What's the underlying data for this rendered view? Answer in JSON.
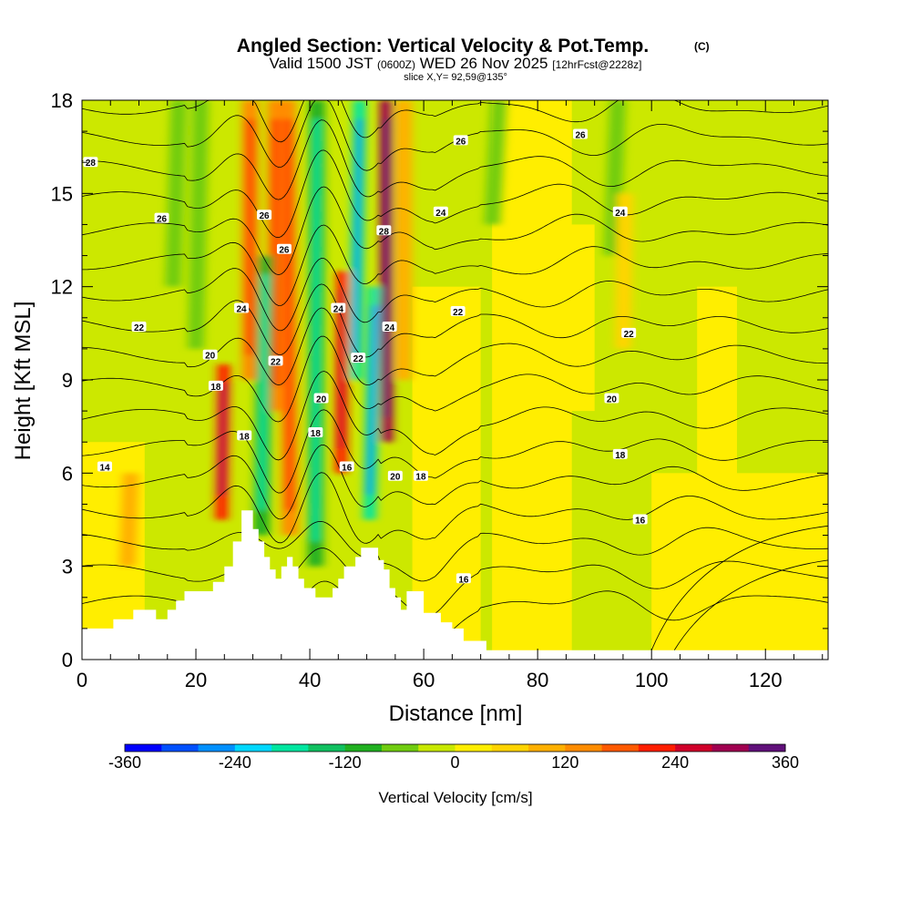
{
  "chart_data": {
    "type": "heatmap",
    "title": "Angled Section: Vertical Velocity & Pot.Temp.",
    "title_mark": "(C)",
    "subtitle_parts": [
      "Valid 1500 JST ",
      "(0600Z)",
      " WED 26 Nov 2025 ",
      "[12hrFcst@2228z]"
    ],
    "slice_label": "slice X,Y= 92,59@135°",
    "xlabel": "Distance [nm]",
    "ylabel": "Height [Kft MSL]",
    "xlim": [
      0,
      131
    ],
    "ylim": [
      0,
      18
    ],
    "x_ticks": [
      0,
      20,
      40,
      60,
      80,
      100,
      120
    ],
    "y_ticks": [
      0,
      3,
      6,
      9,
      12,
      15,
      18
    ],
    "colorbar": {
      "label": "Vertical Velocity [cm/s]",
      "ticks": [
        -360,
        -240,
        -120,
        0,
        120,
        240,
        360
      ],
      "range": [
        -360,
        360
      ],
      "colors": [
        "#0000ff",
        "#0050ff",
        "#0090ff",
        "#00d8ff",
        "#00e6a0",
        "#10c060",
        "#20b020",
        "#70cc10",
        "#c8e800",
        "#ffee00",
        "#ffd400",
        "#ffb000",
        "#ff8c00",
        "#ff5a00",
        "#ff1e00",
        "#d0002a",
        "#a00050",
        "#60107a"
      ]
    },
    "velocity_streaks": [
      {
        "x": 24.5,
        "top": 9.5,
        "bottom": 4.5,
        "value": 220
      },
      {
        "x": 29.5,
        "top": 18,
        "bottom": 9,
        "value": 150
      },
      {
        "x": 34,
        "top": 18,
        "bottom": 8,
        "value": 150
      },
      {
        "x": 31.5,
        "top": 13,
        "bottom": 4,
        "value": -120
      },
      {
        "x": 36.5,
        "top": 18,
        "bottom": 4,
        "value": 150
      },
      {
        "x": 41,
        "top": 18,
        "bottom": 3,
        "value": -120
      },
      {
        "x": 45.5,
        "top": 12.5,
        "bottom": 6,
        "value": 200
      },
      {
        "x": 48,
        "top": 18,
        "bottom": 9,
        "value": -200
      },
      {
        "x": 53.5,
        "top": 18,
        "bottom": 7,
        "value": 290
      },
      {
        "x": 50.5,
        "top": 12,
        "bottom": 4.5,
        "value": -200
      },
      {
        "x": 56.5,
        "top": 18,
        "bottom": 9,
        "value": 80
      },
      {
        "x": 16,
        "top": 18,
        "bottom": 12,
        "value": -60
      },
      {
        "x": 20,
        "top": 18,
        "bottom": 10,
        "value": -60
      },
      {
        "x": 72,
        "top": 18,
        "bottom": 14,
        "value": -60
      },
      {
        "x": 93,
        "top": 18,
        "bottom": 13,
        "value": -60
      },
      {
        "x": 95,
        "top": 15,
        "bottom": 10,
        "value": 40
      },
      {
        "x": 8,
        "top": 6,
        "bottom": 3,
        "value": 90
      }
    ],
    "theta_contours": [
      {
        "value": 14,
        "base_height": 6.2
      },
      {
        "value": 16,
        "base_height": 4.2
      },
      {
        "value": 18,
        "base_height": 6.5
      },
      {
        "value": 20,
        "base_height": 8.0
      },
      {
        "value": 22,
        "base_height": 10.8
      },
      {
        "value": 24,
        "base_height": 14.0
      },
      {
        "value": 26,
        "base_height": 17.0
      }
    ],
    "contour_labels": [
      {
        "text": "28",
        "x": 1.5,
        "y": 16
      },
      {
        "text": "26",
        "x": 14,
        "y": 14.2
      },
      {
        "text": "26",
        "x": 32,
        "y": 14.3
      },
      {
        "text": "26",
        "x": 35.5,
        "y": 13.2
      },
      {
        "text": "28",
        "x": 53,
        "y": 13.8
      },
      {
        "text": "26",
        "x": 66.5,
        "y": 16.7
      },
      {
        "text": "24",
        "x": 63,
        "y": 14.4
      },
      {
        "text": "26",
        "x": 87.5,
        "y": 16.9
      },
      {
        "text": "24",
        "x": 94.5,
        "y": 14.4
      },
      {
        "text": "24",
        "x": 28,
        "y": 11.3
      },
      {
        "text": "24",
        "x": 45,
        "y": 11.3
      },
      {
        "text": "24",
        "x": 54,
        "y": 10.7
      },
      {
        "text": "22",
        "x": 10,
        "y": 10.7
      },
      {
        "text": "22",
        "x": 66,
        "y": 11.2
      },
      {
        "text": "22",
        "x": 96,
        "y": 10.5
      },
      {
        "text": "20",
        "x": 22.5,
        "y": 9.8
      },
      {
        "text": "22",
        "x": 34,
        "y": 9.6
      },
      {
        "text": "22",
        "x": 48.5,
        "y": 9.7
      },
      {
        "text": "18",
        "x": 23.5,
        "y": 8.8
      },
      {
        "text": "20",
        "x": 42,
        "y": 8.4
      },
      {
        "text": "20",
        "x": 93,
        "y": 8.4
      },
      {
        "text": "18",
        "x": 28.5,
        "y": 7.2
      },
      {
        "text": "18",
        "x": 41,
        "y": 7.3
      },
      {
        "text": "18",
        "x": 94.5,
        "y": 6.6
      },
      {
        "text": "14",
        "x": 4,
        "y": 6.2
      },
      {
        "text": "16",
        "x": 46.5,
        "y": 6.2
      },
      {
        "text": "20",
        "x": 55,
        "y": 5.9
      },
      {
        "text": "18",
        "x": 59.5,
        "y": 5.9
      },
      {
        "text": "16",
        "x": 98,
        "y": 4.5
      },
      {
        "text": "16",
        "x": 67,
        "y": 2.6
      }
    ],
    "terrain": [
      [
        0,
        1
      ],
      [
        5.5,
        1
      ],
      [
        5.5,
        1.3
      ],
      [
        9,
        1.3
      ],
      [
        9,
        1.6
      ],
      [
        13,
        1.6
      ],
      [
        13,
        1.3
      ],
      [
        15,
        1.3
      ],
      [
        15,
        1.6
      ],
      [
        16.5,
        1.6
      ],
      [
        16.5,
        1.9
      ],
      [
        18,
        1.9
      ],
      [
        18,
        2.2
      ],
      [
        23,
        2.2
      ],
      [
        23,
        2.5
      ],
      [
        25,
        2.5
      ],
      [
        25,
        3
      ],
      [
        26.5,
        3
      ],
      [
        26.5,
        3.8
      ],
      [
        28,
        3.8
      ],
      [
        28,
        4.8
      ],
      [
        30,
        4.8
      ],
      [
        30,
        4.2
      ],
      [
        31,
        4.2
      ],
      [
        31,
        3.8
      ],
      [
        32,
        3.8
      ],
      [
        32,
        3.3
      ],
      [
        33,
        3.3
      ],
      [
        33,
        2.9
      ],
      [
        34,
        2.9
      ],
      [
        34,
        2.6
      ],
      [
        35,
        2.6
      ],
      [
        35,
        3
      ],
      [
        36,
        3
      ],
      [
        36,
        3.3
      ],
      [
        37,
        3.3
      ],
      [
        37,
        3
      ],
      [
        38,
        3
      ],
      [
        38,
        2.6
      ],
      [
        39,
        2.6
      ],
      [
        39,
        2.3
      ],
      [
        41,
        2.3
      ],
      [
        41,
        2
      ],
      [
        44,
        2
      ],
      [
        44,
        2.3
      ],
      [
        45,
        2.3
      ],
      [
        45,
        2.6
      ],
      [
        46,
        2.6
      ],
      [
        46,
        3
      ],
      [
        48,
        3
      ],
      [
        48,
        3.3
      ],
      [
        49,
        3.3
      ],
      [
        49,
        3.6
      ],
      [
        52,
        3.6
      ],
      [
        52,
        3.2
      ],
      [
        53,
        3.2
      ],
      [
        53,
        2.9
      ],
      [
        54,
        2.9
      ],
      [
        54,
        2.3
      ],
      [
        55,
        2.3
      ],
      [
        55,
        2
      ],
      [
        56,
        2
      ],
      [
        56,
        1.6
      ],
      [
        57,
        1.6
      ],
      [
        57,
        2.2
      ],
      [
        60,
        2.2
      ],
      [
        60,
        1.5
      ],
      [
        63,
        1.5
      ],
      [
        63,
        1.2
      ],
      [
        65,
        1.2
      ],
      [
        65,
        1
      ],
      [
        67,
        1
      ],
      [
        67,
        0.6
      ],
      [
        71,
        0.6
      ],
      [
        71,
        0.3
      ],
      [
        131,
        0.3
      ],
      [
        131,
        0
      ],
      [
        0,
        0
      ]
    ]
  }
}
